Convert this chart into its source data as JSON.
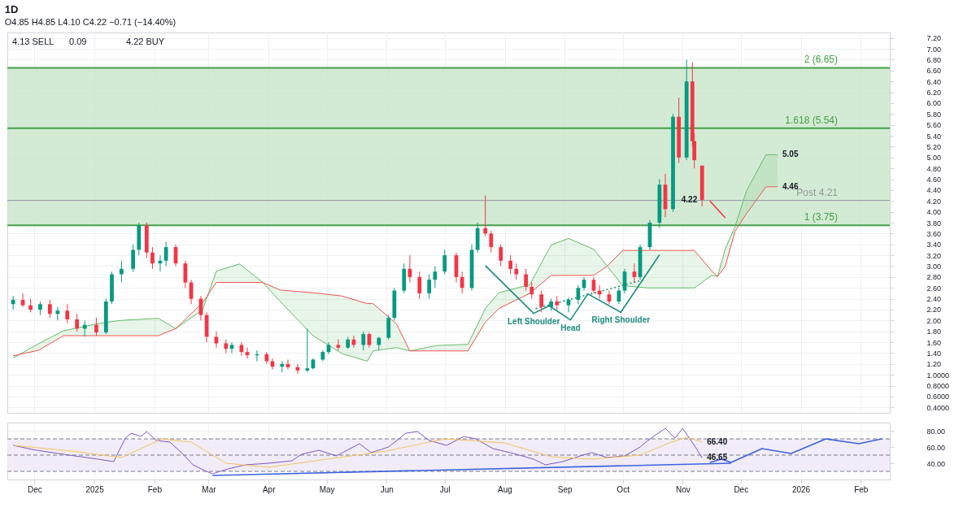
{
  "chart_data": [
    {
      "type": "candlestick",
      "title": "1D",
      "subtitle": "O4.85 H4.85 L4.10 C4.22 −0.71 (−14.40%)",
      "x": [
        "2024-11-20",
        "2024-11-25",
        "2024-11-29",
        "2024-12-04",
        "2024-12-09",
        "2024-12-13",
        "2024-12-18",
        "2024-12-23",
        "2024-12-27",
        "2025-01-02",
        "2025-01-07",
        "2025-01-10",
        "2025-01-15",
        "2025-01-21",
        "2025-01-24",
        "2025-01-28",
        "2025-01-31",
        "2025-02-04",
        "2025-02-07",
        "2025-02-12",
        "2025-02-17",
        "2025-02-20",
        "2025-02-25",
        "2025-02-28",
        "2025-03-05",
        "2025-03-10",
        "2025-03-13",
        "2025-03-18",
        "2025-03-21",
        "2025-03-26",
        "2025-03-31",
        "2025-04-03",
        "2025-04-08",
        "2025-04-11",
        "2025-04-16",
        "2025-04-21",
        "2025-04-24",
        "2025-04-29",
        "2025-05-02",
        "2025-05-07",
        "2025-05-12",
        "2025-05-15",
        "2025-05-20",
        "2025-05-23",
        "2025-05-28",
        "2025-06-02",
        "2025-06-05",
        "2025-06-10",
        "2025-06-13",
        "2025-06-18",
        "2025-06-23",
        "2025-06-26",
        "2025-07-01",
        "2025-07-07",
        "2025-07-10",
        "2025-07-15",
        "2025-07-18",
        "2025-07-22",
        "2025-07-25",
        "2025-07-30",
        "2025-08-04",
        "2025-08-07",
        "2025-08-12",
        "2025-08-15",
        "2025-08-20",
        "2025-08-25",
        "2025-08-28",
        "2025-09-03",
        "2025-09-08",
        "2025-09-11",
        "2025-09-16",
        "2025-09-19",
        "2025-09-24",
        "2025-09-29",
        "2025-10-02",
        "2025-10-07",
        "2025-10-10",
        "2025-10-15",
        "2025-10-20",
        "2025-10-23",
        "2025-10-27",
        "2025-10-30",
        "2025-11-03",
        "2025-11-06",
        "2025-11-07",
        "2025-11-11"
      ],
      "ohlc": [
        [
          2.3,
          2.45,
          2.2,
          2.38
        ],
        [
          2.38,
          2.5,
          2.25,
          2.28
        ],
        [
          2.28,
          2.4,
          2.15,
          2.2
        ],
        [
          2.2,
          2.35,
          2.1,
          2.3
        ],
        [
          2.3,
          2.38,
          2.05,
          2.12
        ],
        [
          2.12,
          2.25,
          2.0,
          2.18
        ],
        [
          2.18,
          2.3,
          1.95,
          2.02
        ],
        [
          2.02,
          2.12,
          1.8,
          1.85
        ],
        [
          1.85,
          2.0,
          1.7,
          1.92
        ],
        [
          1.92,
          2.05,
          1.72,
          1.78
        ],
        [
          1.78,
          2.4,
          1.75,
          2.35
        ],
        [
          2.35,
          2.9,
          2.3,
          2.85
        ],
        [
          2.85,
          3.1,
          2.7,
          2.95
        ],
        [
          2.95,
          3.4,
          2.9,
          3.3
        ],
        [
          3.3,
          3.8,
          3.2,
          3.75
        ],
        [
          3.75,
          3.8,
          3.15,
          3.25
        ],
        [
          3.25,
          3.35,
          2.95,
          3.05
        ],
        [
          3.05,
          3.2,
          2.9,
          3.1
        ],
        [
          3.1,
          3.45,
          3.0,
          3.35
        ],
        [
          3.35,
          3.4,
          3.0,
          3.05
        ],
        [
          3.05,
          3.1,
          2.6,
          2.7
        ],
        [
          2.7,
          2.75,
          2.3,
          2.4
        ],
        [
          2.4,
          2.45,
          2.0,
          2.1
        ],
        [
          2.1,
          2.15,
          1.6,
          1.7
        ],
        [
          1.7,
          1.8,
          1.5,
          1.58
        ],
        [
          1.58,
          1.65,
          1.4,
          1.48
        ],
        [
          1.48,
          1.6,
          1.4,
          1.55
        ],
        [
          1.55,
          1.6,
          1.35,
          1.42
        ],
        [
          1.42,
          1.5,
          1.3,
          1.36
        ],
        [
          1.36,
          1.45,
          1.25,
          1.38
        ],
        [
          1.38,
          1.42,
          1.2,
          1.25
        ],
        [
          1.25,
          1.3,
          1.1,
          1.15
        ],
        [
          1.15,
          1.25,
          1.05,
          1.2
        ],
        [
          1.2,
          1.28,
          1.1,
          1.14
        ],
        [
          1.14,
          1.2,
          1.02,
          1.08
        ],
        [
          1.08,
          1.85,
          1.05,
          1.12
        ],
        [
          1.12,
          1.3,
          1.1,
          1.28
        ],
        [
          1.28,
          1.45,
          1.25,
          1.42
        ],
        [
          1.42,
          1.6,
          1.38,
          1.55
        ],
        [
          1.55,
          1.65,
          1.45,
          1.5
        ],
        [
          1.5,
          1.7,
          1.48,
          1.65
        ],
        [
          1.65,
          1.72,
          1.5,
          1.55
        ],
        [
          1.55,
          1.8,
          1.45,
          1.75
        ],
        [
          1.75,
          1.78,
          1.5,
          1.55
        ],
        [
          1.55,
          1.7,
          1.45,
          1.68
        ],
        [
          1.68,
          2.1,
          1.65,
          2.05
        ],
        [
          2.05,
          2.6,
          2.0,
          2.55
        ],
        [
          2.55,
          3.05,
          2.5,
          2.95
        ],
        [
          2.95,
          3.2,
          2.7,
          2.8
        ],
        [
          2.8,
          2.9,
          2.4,
          2.5
        ],
        [
          2.5,
          2.85,
          2.4,
          2.75
        ],
        [
          2.75,
          3.0,
          2.6,
          2.9
        ],
        [
          2.9,
          3.3,
          2.85,
          3.2
        ],
        [
          3.2,
          3.25,
          2.7,
          2.8
        ],
        [
          2.8,
          2.9,
          2.5,
          2.6
        ],
        [
          2.6,
          3.4,
          2.55,
          3.3
        ],
        [
          3.3,
          3.8,
          3.25,
          3.7
        ],
        [
          3.7,
          4.3,
          3.55,
          3.6
        ],
        [
          3.6,
          3.65,
          3.25,
          3.35
        ],
        [
          3.35,
          3.4,
          3.0,
          3.1
        ],
        [
          3.1,
          3.2,
          2.85,
          2.95
        ],
        [
          2.95,
          3.05,
          2.75,
          2.85
        ],
        [
          2.85,
          2.95,
          2.55,
          2.62
        ],
        [
          2.62,
          2.7,
          2.4,
          2.48
        ],
        [
          2.48,
          2.55,
          2.15,
          2.25
        ],
        [
          2.25,
          2.4,
          2.18,
          2.35
        ],
        [
          2.35,
          2.45,
          2.2,
          2.28
        ],
        [
          2.28,
          2.42,
          2.15,
          2.38
        ],
        [
          2.38,
          2.65,
          2.3,
          2.6
        ],
        [
          2.6,
          2.8,
          2.55,
          2.75
        ],
        [
          2.75,
          2.8,
          2.5,
          2.55
        ],
        [
          2.55,
          2.65,
          2.4,
          2.48
        ],
        [
          2.48,
          2.55,
          2.3,
          2.35
        ],
        [
          2.35,
          2.6,
          2.3,
          2.55
        ],
        [
          2.55,
          2.95,
          2.5,
          2.9
        ],
        [
          2.9,
          3.05,
          2.7,
          2.8
        ],
        [
          2.8,
          3.4,
          2.75,
          3.35
        ],
        [
          3.35,
          3.85,
          3.3,
          3.8
        ],
        [
          3.8,
          4.6,
          3.7,
          4.5
        ],
        [
          4.5,
          4.7,
          3.9,
          4.05
        ],
        [
          4.05,
          5.8,
          4.0,
          5.75
        ],
        [
          5.75,
          6.1,
          4.9,
          5.0
        ],
        [
          5.0,
          6.8,
          4.95,
          6.4
        ],
        [
          6.4,
          6.75,
          5.2,
          5.3
        ],
        [
          5.3,
          5.45,
          4.8,
          4.95
        ],
        [
          4.85,
          4.85,
          4.1,
          4.22
        ]
      ],
      "series": [
        {
          "type": "line",
          "color": "#66bb6a",
          "x": [
            "2024-11-20",
            "2024-12-03",
            "2024-12-16",
            "2025-01-04",
            "2025-01-14",
            "2025-02-03",
            "2025-02-12",
            "2025-02-26",
            "2025-03-05",
            "2025-03-17",
            "2025-03-29",
            "2025-04-07",
            "2025-04-24",
            "2025-05-09",
            "2025-05-22",
            "2025-05-25",
            "2025-06-06",
            "2025-06-13",
            "2025-06-27",
            "2025-07-13",
            "2025-07-22",
            "2025-07-29",
            "2025-08-14",
            "2025-08-25",
            "2025-09-03",
            "2025-09-16",
            "2025-09-23",
            "2025-10-01",
            "2025-10-14",
            "2025-11-07",
            "2025-11-16",
            "2025-11-19",
            "2025-11-23",
            "2025-11-28",
            "2025-12-04",
            "2025-12-14",
            "2025-12-20"
          ],
          "values": [
            1.31,
            1.57,
            1.81,
            1.95,
            2.0,
            2.04,
            1.85,
            2.2,
            2.91,
            3.04,
            2.7,
            2.35,
            1.72,
            1.39,
            1.25,
            1.44,
            1.5,
            1.44,
            1.54,
            1.56,
            2.22,
            2.51,
            2.66,
            3.39,
            3.51,
            3.31,
            3.0,
            2.64,
            2.6,
            2.6,
            2.83,
            2.81,
            3.32,
            3.72,
            4.39,
            5.05,
            5.05
          ],
          "lower": [
            1.35,
            1.45,
            1.72,
            1.72,
            1.72,
            1.72,
            1.85,
            2.33,
            2.7,
            2.7,
            2.7,
            2.56,
            2.51,
            2.45,
            2.31,
            2.31,
            1.94,
            1.44,
            1.44,
            1.44,
            1.97,
            2.22,
            2.5,
            2.83,
            2.83,
            2.83,
            3.0,
            3.29,
            3.29,
            3.29,
            2.91,
            2.81,
            3.0,
            3.64,
            3.97,
            4.46,
            4.46
          ],
          "upper": [
            1.31,
            1.57,
            1.81,
            1.95,
            2.0,
            2.04,
            1.85,
            2.2,
            2.91,
            3.04,
            2.7,
            2.35,
            1.72,
            1.39,
            1.25,
            1.44,
            1.5,
            1.44,
            1.54,
            1.56,
            2.22,
            2.51,
            2.66,
            3.39,
            3.51,
            3.31,
            3.0,
            2.64,
            2.6,
            2.6,
            2.83,
            2.81,
            3.32,
            3.72,
            4.39,
            5.05,
            5.05
          ]
        },
        {
          "type": "line",
          "color": "#ef5350",
          "x": [
            "2024-11-20",
            "2024-12-03",
            "2024-12-16",
            "2025-01-04",
            "2025-01-14",
            "2025-02-03",
            "2025-02-12",
            "2025-02-26",
            "2025-03-05",
            "2025-03-17",
            "2025-03-29",
            "2025-04-07",
            "2025-04-24",
            "2025-05-09",
            "2025-05-22",
            "2025-05-25",
            "2025-06-06",
            "2025-06-13",
            "2025-06-27",
            "2025-07-13",
            "2025-07-22",
            "2025-07-29",
            "2025-08-14",
            "2025-08-25",
            "2025-09-03",
            "2025-09-16",
            "2025-09-23",
            "2025-10-01",
            "2025-10-14",
            "2025-11-07",
            "2025-11-16",
            "2025-11-19",
            "2025-11-23",
            "2025-11-28",
            "2025-12-04",
            "2025-12-14",
            "2025-12-20"
          ],
          "values": [
            1.35,
            1.45,
            1.72,
            1.72,
            1.72,
            1.72,
            1.85,
            2.33,
            2.7,
            2.7,
            2.7,
            2.56,
            2.51,
            2.45,
            2.31,
            2.31,
            1.94,
            1.44,
            1.44,
            1.44,
            1.97,
            2.22,
            2.5,
            2.83,
            2.83,
            2.83,
            3.0,
            3.29,
            3.29,
            3.29,
            2.91,
            2.81,
            3.0,
            3.64,
            3.97,
            4.46,
            4.46
          ]
        },
        {
          "type": "line",
          "color": "#1e8c7e",
          "x": [
            "2025-07-22",
            "2025-08-16",
            "2025-08-24",
            "2025-09-04",
            "2025-09-13",
            "2025-09-30",
            "2025-10-20"
          ],
          "values": [
            3.01,
            2.13,
            2.27,
            2.01,
            2.49,
            2.15,
            3.21
          ]
        },
        {
          "type": "line",
          "color": "#1e8c7e",
          "line_style": "dotted",
          "x": [
            "2025-08-17",
            "2025-10-12"
          ],
          "values": [
            2.22,
            2.75
          ]
        },
        {
          "type": "line",
          "color": "#f23645",
          "x": [
            "2025-11-15",
            "2025-11-23"
          ],
          "values": [
            4.2,
            3.89
          ]
        }
      ],
      "xlim": [
        "2024-11-17",
        "2026-02-16"
      ],
      "xticks": [
        {
          "value": "2024-12-01",
          "label": null
        },
        {
          "value": "2025-01-01",
          "label": null
        },
        {
          "value": "2025-02-01",
          "label": null
        },
        {
          "value": "2025-03-01",
          "label": null
        },
        {
          "value": "2025-04-01",
          "label": null
        },
        {
          "value": "2025-05-01",
          "label": null
        },
        {
          "value": "2025-06-01",
          "label": null
        },
        {
          "value": "2025-07-01",
          "label": null
        },
        {
          "value": "2025-08-01",
          "label": null
        },
        {
          "value": "2025-09-01",
          "label": null
        },
        {
          "value": "2025-10-01",
          "label": null
        },
        {
          "value": "2025-11-01",
          "label": null
        },
        {
          "value": "2025-12-01",
          "label": null
        },
        {
          "value": "2026-01-01",
          "label": null
        },
        {
          "value": "2026-02-01",
          "label": null
        }
      ],
      "ylim": [
        0.3,
        7.3
      ],
      "yticks": [
        {
          "value": 0.4,
          "label": "0.4000"
        },
        {
          "value": 0.6,
          "label": "0.6000"
        },
        {
          "value": 0.8,
          "label": "0.8000"
        },
        {
          "value": 1.0,
          "label": "1.0000"
        },
        {
          "value": 1.2,
          "label": "1.20"
        },
        {
          "value": 1.4,
          "label": "1.40"
        },
        {
          "value": 1.6,
          "label": "1.60"
        },
        {
          "value": 1.8,
          "label": "1.80"
        },
        {
          "value": 2.0,
          "label": "2.00"
        },
        {
          "value": 2.2,
          "label": "2.20"
        },
        {
          "value": 2.4,
          "label": "2.40"
        },
        {
          "value": 2.6,
          "label": "2.60"
        },
        {
          "value": 2.8,
          "label": "2.80"
        },
        {
          "value": 3.0,
          "label": "3.00"
        },
        {
          "value": 3.2,
          "label": "3.20"
        },
        {
          "value": 3.4,
          "label": "3.40"
        },
        {
          "value": 3.6,
          "label": "3.60"
        },
        {
          "value": 3.8,
          "label": "3.80"
        },
        {
          "value": 4.0,
          "label": "4.00"
        },
        {
          "value": 4.2,
          "label": "4.20"
        },
        {
          "value": 4.4,
          "label": "4.40"
        },
        {
          "value": 4.6,
          "label": "4.60"
        },
        {
          "value": 4.8,
          "label": "4.80"
        },
        {
          "value": 5.0,
          "label": "5.00"
        },
        {
          "value": 5.2,
          "label": "5.20"
        },
        {
          "value": 5.4,
          "label": "5.40"
        },
        {
          "value": 5.6,
          "label": "5.60"
        },
        {
          "value": 5.8,
          "label": "5.80"
        },
        {
          "value": 6.0,
          "label": "6.00"
        },
        {
          "value": 6.2,
          "label": "6.20"
        },
        {
          "value": 6.4,
          "label": "6.40"
        },
        {
          "value": 6.6,
          "label": "6.60"
        },
        {
          "value": 6.8,
          "label": "6.80"
        },
        {
          "value": 7.0,
          "label": "7.00"
        },
        {
          "value": 7.2,
          "label": "7.20"
        }
      ],
      "tick_labels": "y",
      "grid": true,
      "bands": [
        {
          "axis": "y",
          "from": 3.75,
          "to": 6.65,
          "color": "#c8e6c9"
        }
      ],
      "ref_lines": [
        {
          "axis": "y",
          "value": 3.75,
          "label": "1 (3.75)",
          "color": "#43a047"
        },
        {
          "axis": "y",
          "value": 5.54,
          "label": "1.618 (5.54)",
          "color": "#43a047"
        },
        {
          "axis": "y",
          "value": 6.65,
          "label": "2 (6.65)",
          "color": "#43a047"
        },
        {
          "axis": "y",
          "value": 4.21,
          "label": "Post 4.21",
          "color": "#9598a1"
        }
      ],
      "annotations": [
        "4.13 SELL",
        "0.09",
        "4.22 BUY",
        {
          "text": "Left Shoulder",
          "x": "2025-08-16",
          "y": 2.13
        },
        {
          "text": "Head",
          "x": "2025-09-04",
          "y": 2.01
        },
        {
          "text": "Right Shoulder",
          "x": "2025-09-30",
          "y": 2.15
        },
        {
          "text": "5.05",
          "x": "2025-12-20",
          "y": 5.05
        },
        {
          "text": "4.46",
          "x": "2025-12-20",
          "y": 4.46
        },
        {
          "text": "4.22",
          "x": "2025-11-11",
          "y": 4.22
        }
      ]
    },
    {
      "type": "line",
      "series": [
        {
          "type": "line",
          "color": "#7e57c2",
          "x": [
            "2024-11-20",
            "2024-12-02",
            "2024-12-19",
            "2025-01-03",
            "2025-01-11",
            "2025-01-17",
            "2025-01-20",
            "2025-01-25",
            "2025-01-28",
            "2025-02-02",
            "2025-02-09",
            "2025-02-15",
            "2025-02-21",
            "2025-02-27",
            "2025-03-03",
            "2025-03-11",
            "2025-03-20",
            "2025-04-01",
            "2025-04-13",
            "2025-04-18",
            "2025-04-27",
            "2025-05-06",
            "2025-05-18",
            "2025-05-24",
            "2025-06-02",
            "2025-06-11",
            "2025-06-17",
            "2025-06-23",
            "2025-07-02",
            "2025-07-11",
            "2025-07-17",
            "2025-07-26",
            "2025-08-04",
            "2025-08-16",
            "2025-08-22",
            "2025-08-31",
            "2025-09-09",
            "2025-09-15",
            "2025-09-23",
            "2025-10-02",
            "2025-10-10",
            "2025-10-14",
            "2025-10-23",
            "2025-10-28",
            "2025-11-01",
            "2025-11-07",
            "2025-11-11"
          ],
          "values": [
            62,
            56,
            50,
            45,
            42,
            71,
            77,
            73,
            79,
            68,
            66,
            53,
            38,
            31,
            27,
            33,
            38,
            40,
            43,
            51,
            56,
            49,
            64,
            53,
            60,
            77,
            79,
            68,
            62,
            73,
            70,
            58,
            53,
            45,
            38,
            42,
            49,
            53,
            47,
            49,
            60,
            68,
            83,
            71,
            83,
            62,
            46.65
          ]
        },
        {
          "type": "line",
          "color": "#f5c35c",
          "x": [
            "2024-11-20",
            "2024-12-20",
            "2025-01-15",
            "2025-02-05",
            "2025-02-20",
            "2025-03-10",
            "2025-04-01",
            "2025-05-01",
            "2025-06-01",
            "2025-07-01",
            "2025-08-01",
            "2025-08-25",
            "2025-09-15",
            "2025-10-10",
            "2025-10-25",
            "2025-11-03",
            "2025-11-11"
          ],
          "values": [
            62,
            55,
            47,
            70,
            66,
            40,
            35,
            45,
            55,
            70,
            65,
            48,
            45,
            50,
            65,
            72,
            66.4
          ]
        },
        {
          "type": "line",
          "color": "#3d63dd",
          "x": [
            "2025-03-03",
            "2025-11-26"
          ],
          "values": [
            25,
            40
          ]
        },
        {
          "type": "line",
          "color": "#3d63dd",
          "x": [
            "2025-11-15",
            "2025-11-21",
            "2025-11-26",
            "2025-12-12",
            "2025-12-27",
            "2026-01-14",
            "2026-01-31",
            "2026-02-12"
          ],
          "values": [
            41,
            45,
            41,
            58,
            52,
            70,
            64,
            70
          ]
        }
      ],
      "xlim": [
        "2024-11-17",
        "2026-02-16"
      ],
      "xticks": [
        {
          "value": "2024-12-01",
          "label": "Dec"
        },
        {
          "value": "2025-01-01",
          "label": "2025"
        },
        {
          "value": "2025-02-01",
          "label": "Feb"
        },
        {
          "value": "2025-03-01",
          "label": "Mar"
        },
        {
          "value": "2025-04-01",
          "label": "Apr"
        },
        {
          "value": "2025-05-01",
          "label": "May"
        },
        {
          "value": "2025-06-01",
          "label": "Jun"
        },
        {
          "value": "2025-07-01",
          "label": "Jul"
        },
        {
          "value": "2025-08-01",
          "label": "Aug"
        },
        {
          "value": "2025-09-01",
          "label": "Sep"
        },
        {
          "value": "2025-10-01",
          "label": "Oct"
        },
        {
          "value": "2025-11-01",
          "label": "Nov"
        },
        {
          "value": "2025-12-01",
          "label": "Dec"
        },
        {
          "value": "2026-01-01",
          "label": "2026"
        },
        {
          "value": "2026-02-01",
          "label": "Feb"
        }
      ],
      "ylim": [
        20,
        90
      ],
      "yticks": [
        {
          "value": 40,
          "label": "40.00"
        },
        {
          "value": 60,
          "label": "60.00"
        },
        {
          "value": 80,
          "label": "80.00"
        }
      ],
      "grid": true,
      "bands": [
        {
          "axis": "y",
          "from": 30,
          "to": 70,
          "color": "#ede7f6"
        }
      ],
      "ref_lines": [
        {
          "axis": "y",
          "value": 70,
          "color": "#787b86",
          "line_style": "dashed"
        },
        {
          "axis": "y",
          "value": 50,
          "color": "#787b86",
          "line_style": "dashed"
        },
        {
          "axis": "y",
          "value": 30,
          "color": "#787b86",
          "line_style": "dashed"
        }
      ],
      "annotations": [
        {
          "text": "66.40",
          "x": "2025-11-11",
          "y": 66.4
        },
        {
          "text": "46.65",
          "x": "2025-11-11",
          "y": 46.65
        }
      ]
    }
  ]
}
